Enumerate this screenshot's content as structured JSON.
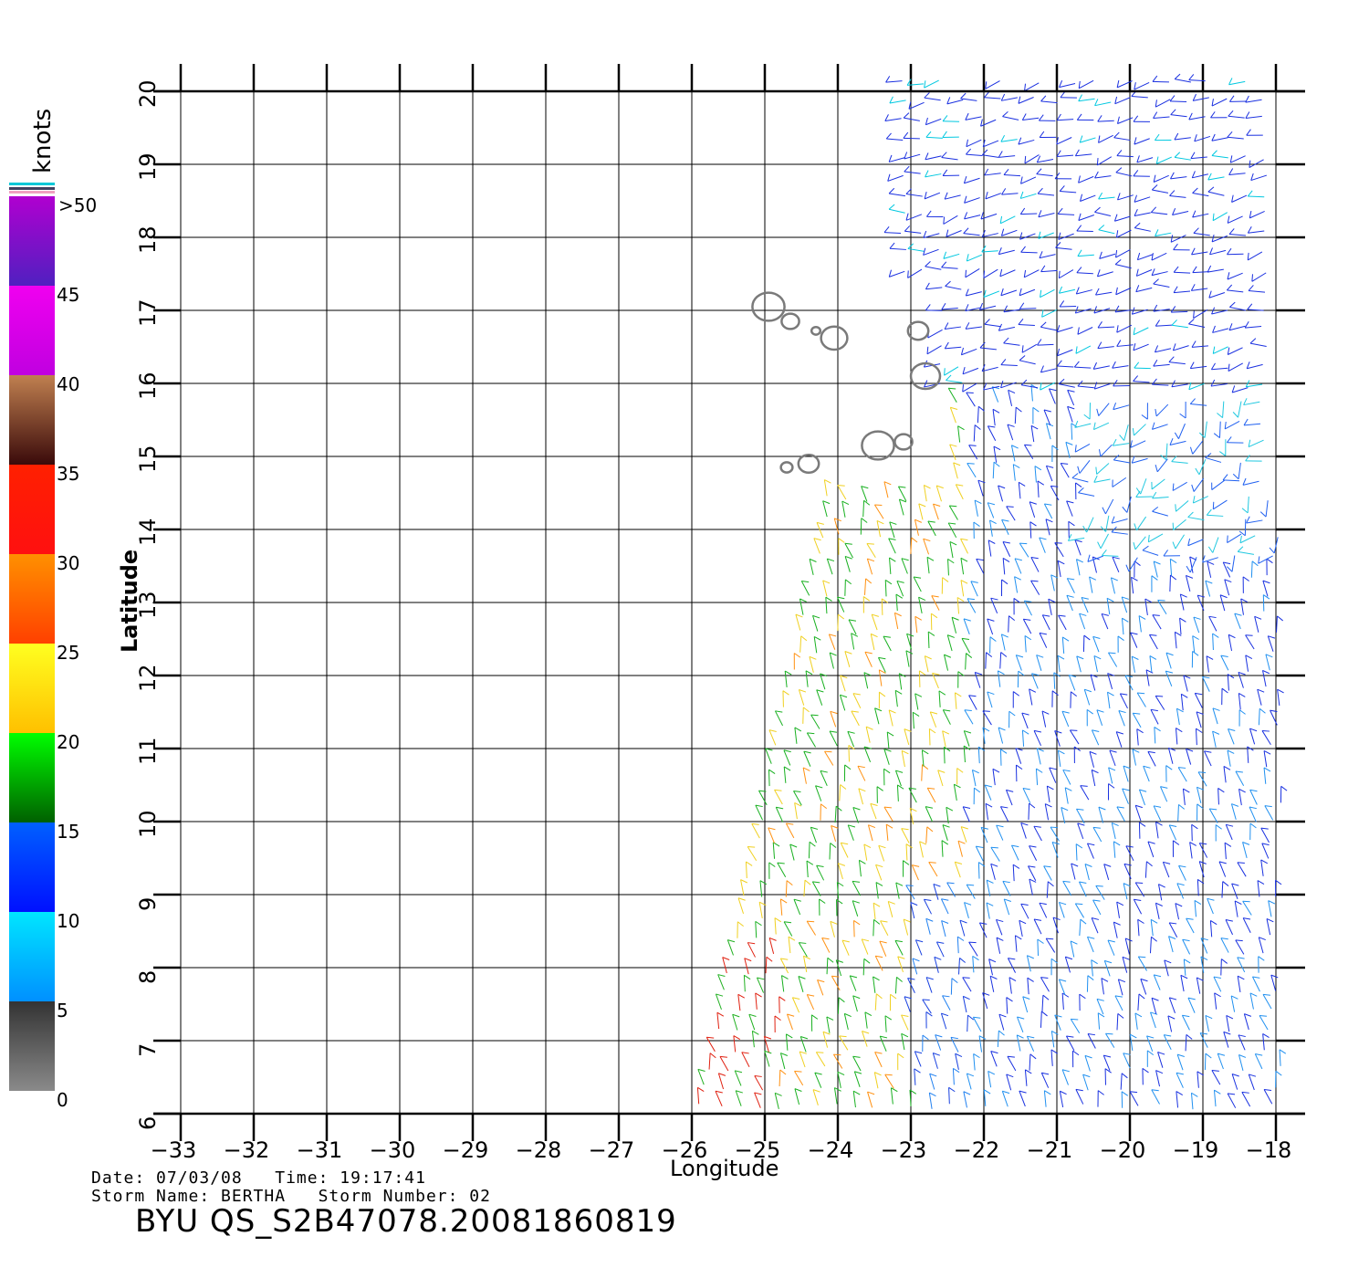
{
  "colorbar": {
    "units": "knots",
    "labels": [
      ">50",
      "45",
      "40",
      "35",
      "30",
      "25",
      "20",
      "15",
      "10",
      "5",
      "0"
    ],
    "bands": [
      {
        "from": 0,
        "to": 5,
        "top": "#333333",
        "bottom": "#8a8a8a"
      },
      {
        "from": 5,
        "to": 10,
        "top": "#00e6ff",
        "bottom": "#0090ff"
      },
      {
        "from": 10,
        "to": 15,
        "top": "#0060ff",
        "bottom": "#0010ff"
      },
      {
        "from": 15,
        "to": 20,
        "top": "#00ff00",
        "bottom": "#006000"
      },
      {
        "from": 20,
        "to": 25,
        "top": "#ffff20",
        "bottom": "#ffc000"
      },
      {
        "from": 25,
        "to": 30,
        "top": "#ff9000",
        "bottom": "#ff4000"
      },
      {
        "from": 30,
        "to": 35,
        "top": "#ff2000",
        "bottom": "#ff1010"
      },
      {
        "from": 35,
        "to": 40,
        "top": "#c08050",
        "bottom": "#3a0a0a"
      },
      {
        "from": 40,
        "to": 45,
        "top": "#f000f0",
        "bottom": "#c000e0"
      },
      {
        "from": 45,
        "to": 50,
        "top": "#b000d0",
        "bottom": "#5020c0"
      }
    ]
  },
  "map": {
    "lon_range": [
      -33,
      -18
    ],
    "lat_range": [
      6,
      20
    ],
    "lon_ticks": [
      "−33",
      "−32",
      "−31",
      "−30",
      "−29",
      "−28",
      "−27",
      "−26",
      "−25",
      "−24",
      "−23",
      "−22",
      "−21",
      "−20",
      "−19",
      "−18"
    ],
    "lat_ticks": [
      "6",
      "7",
      "8",
      "9",
      "10",
      "11",
      "12",
      "13",
      "14",
      "15",
      "16",
      "17",
      "18",
      "19",
      "20"
    ],
    "x_label": "Longitude",
    "y_label": "Latitude",
    "grid": true,
    "islands": [
      {
        "lon": -24.95,
        "lat": 17.05,
        "r": 0.22
      },
      {
        "lon": -24.65,
        "lat": 16.85,
        "r": 0.12
      },
      {
        "lon": -24.3,
        "lat": 16.72,
        "r": 0.06
      },
      {
        "lon": -24.05,
        "lat": 16.62,
        "r": 0.18
      },
      {
        "lon": -22.9,
        "lat": 16.72,
        "r": 0.14
      },
      {
        "lon": -22.8,
        "lat": 16.1,
        "r": 0.2
      },
      {
        "lon": -23.45,
        "lat": 15.15,
        "r": 0.22
      },
      {
        "lon": -23.1,
        "lat": 15.2,
        "r": 0.12
      },
      {
        "lon": -24.4,
        "lat": 14.9,
        "r": 0.14
      },
      {
        "lon": -24.7,
        "lat": 14.85,
        "r": 0.08
      }
    ]
  },
  "info": {
    "date_line": "Date: 07/03/08   Time: 19:17:41",
    "storm_line": "Storm Name: BERTHA   Storm Number: 02",
    "product": "BYU QS_S2B47078.20081860819"
  }
}
